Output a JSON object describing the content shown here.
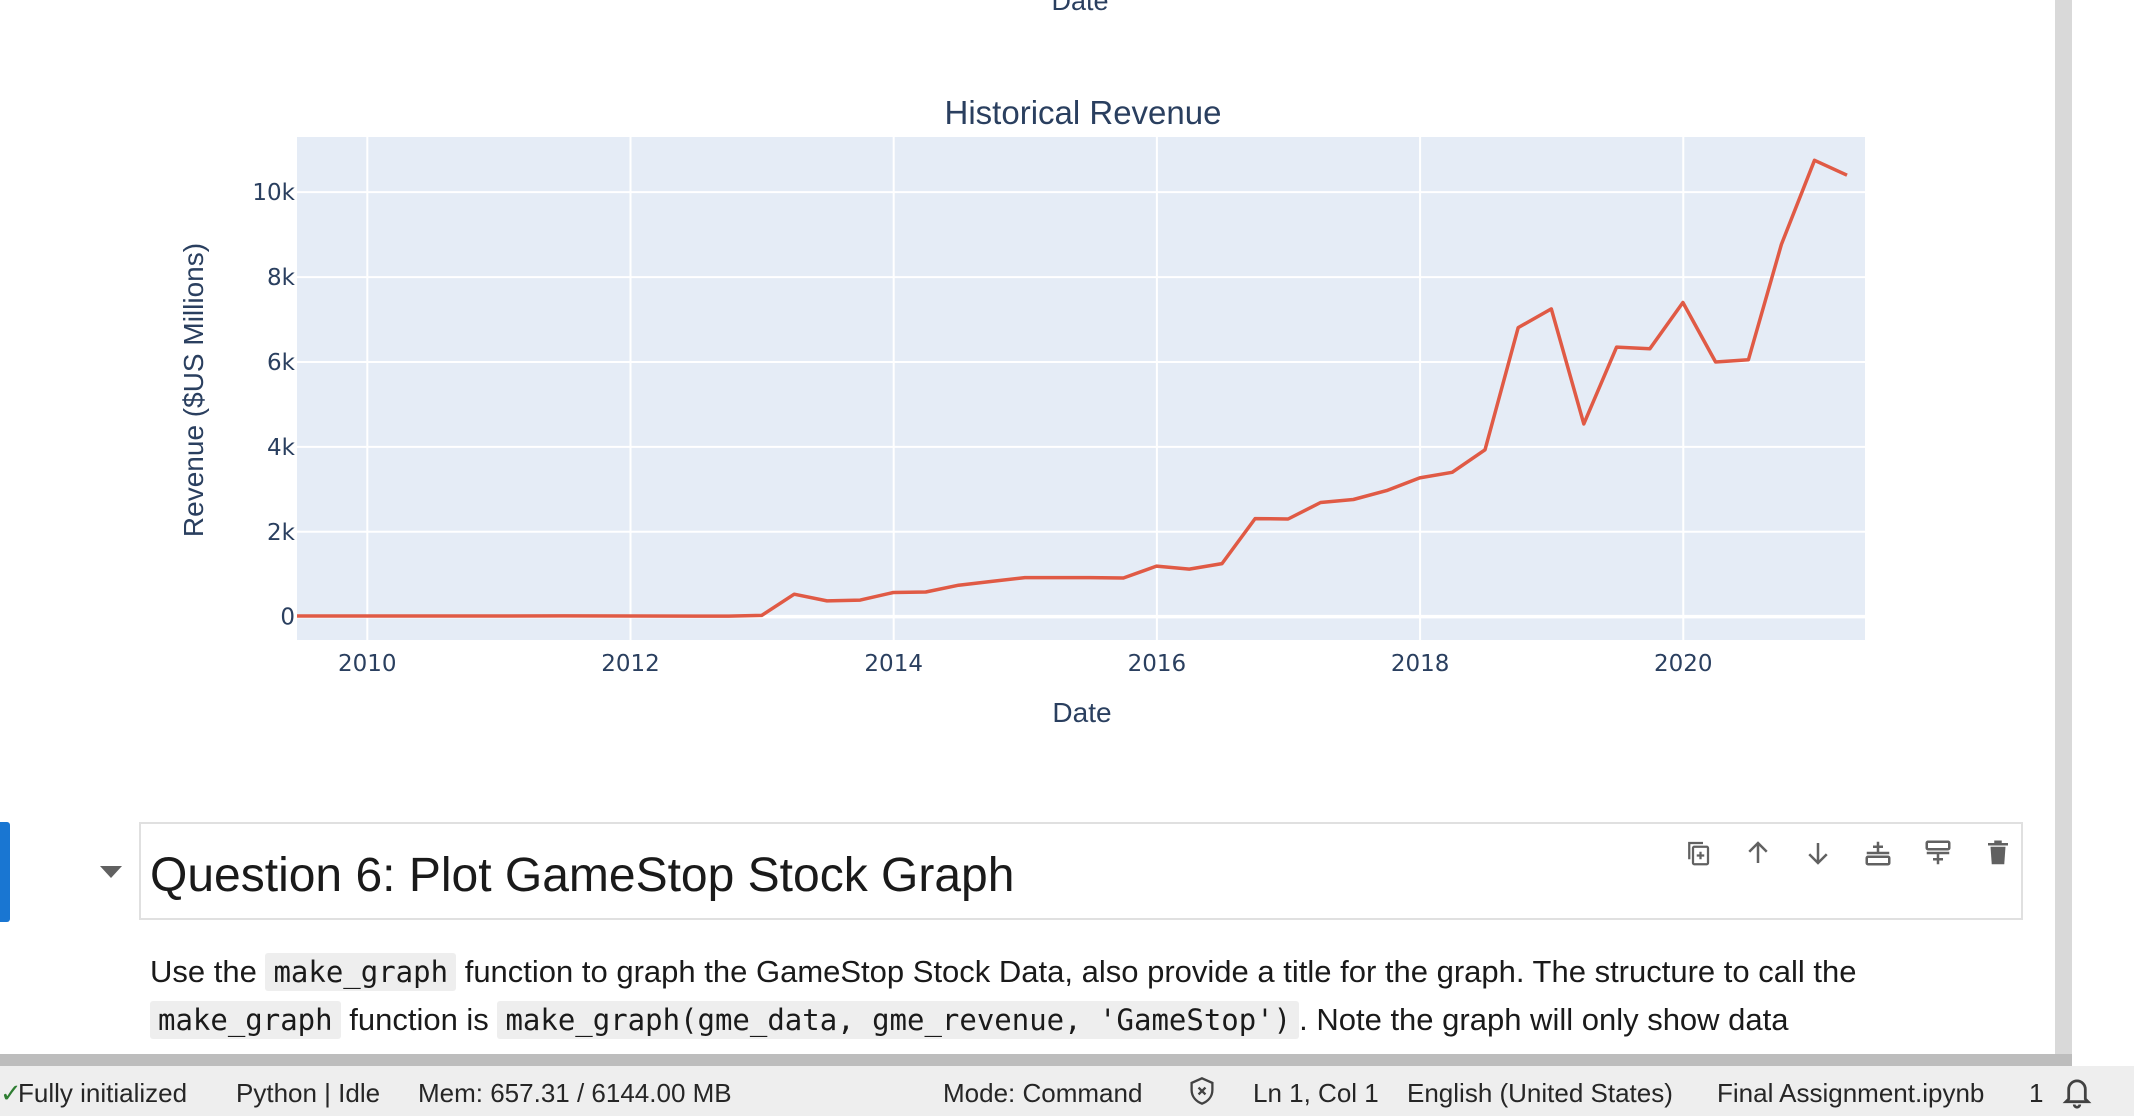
{
  "previous_chart": {
    "xlabel": "Date"
  },
  "chart_data": {
    "type": "line",
    "title": "Historical Revenue",
    "xlabel": "Date",
    "ylabel": "Revenue ($US Millions)",
    "x_ticks": [
      "2010",
      "2012",
      "2014",
      "2016",
      "2018",
      "2020"
    ],
    "y_ticks": [
      "0",
      "2k",
      "4k",
      "6k",
      "8k",
      "10k"
    ],
    "ylim": [
      -550,
      11300
    ],
    "xlim": [
      "2009-06-20",
      "2021-05-20"
    ],
    "grid": true,
    "line_color": "#e05a45",
    "plot_bg": "#e5ecf6",
    "x": [
      "2009-06-20",
      "2009-12-31",
      "2010-06-30",
      "2010-12-31",
      "2011-06-30",
      "2011-12-31",
      "2012-06-30",
      "2012-09-30",
      "2012-12-31",
      "2013-03-31",
      "2013-06-30",
      "2013-09-30",
      "2013-12-31",
      "2014-03-31",
      "2014-06-30",
      "2014-09-30",
      "2014-12-31",
      "2015-03-31",
      "2015-06-30",
      "2015-09-30",
      "2015-12-31",
      "2016-03-31",
      "2016-06-30",
      "2016-09-30",
      "2016-12-31",
      "2017-03-31",
      "2017-06-30",
      "2017-09-30",
      "2017-12-31",
      "2018-03-31",
      "2018-06-30",
      "2018-09-30",
      "2018-12-31",
      "2019-03-31",
      "2019-06-30",
      "2019-09-30",
      "2019-12-31",
      "2020-03-31",
      "2020-06-30",
      "2020-09-30",
      "2020-12-31",
      "2021-03-31"
    ],
    "series": [
      {
        "values": [
          15,
          15,
          15,
          15,
          18,
          16,
          14,
          14,
          30,
          530,
          370,
          390,
          570,
          580,
          740,
          830,
          920,
          920,
          920,
          910,
          1190,
          1120,
          1250,
          2310,
          2300,
          2690,
          2760,
          2970,
          3270,
          3400,
          3930,
          6810,
          7250,
          4540,
          6350,
          6310,
          7400,
          6000,
          6050,
          8770,
          10750,
          10400
        ]
      }
    ]
  },
  "cell": {
    "heading": "Question 6: Plot GameStop Stock Graph",
    "toolbar_icons": [
      "duplicate-cell-icon",
      "move-up-icon",
      "move-down-icon",
      "insert-below-icon",
      "insert-above-icon",
      "delete-icon"
    ],
    "md_line1_a": "Use the",
    "md_line1_code": "make_graph",
    "md_line1_b": "function to graph the GameStop Stock Data, also provide a title for the graph. The structure to call the",
    "md_line2_code1": "make_graph",
    "md_line2_a": "function is",
    "md_line2_code2": "make_graph(gme_data, gme_revenue, 'GameStop')",
    "md_line2_b": ". Note the graph will only show data"
  },
  "status_bar": {
    "kernel_status": "Fully initialized",
    "kernel": "Python | Idle",
    "memory": "Mem: 657.31 / 6144.00 MB",
    "mode": "Mode: Command",
    "cursor": "Ln 1, Col 1",
    "language": "English (United States)",
    "filename": "Final Assignment.ipynb",
    "notifications": "1"
  }
}
